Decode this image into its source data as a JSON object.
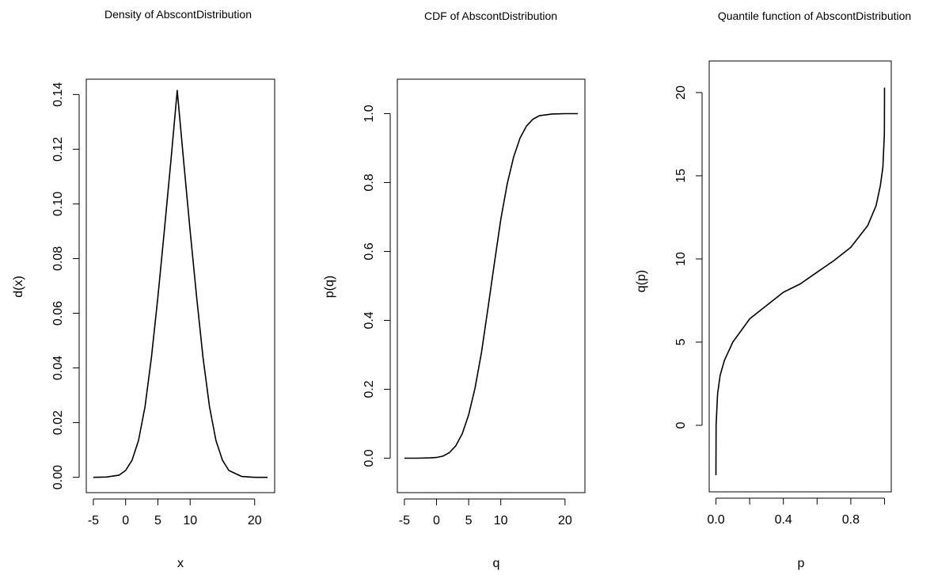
{
  "chart_data": [
    {
      "type": "line",
      "title": "Density of AbscontDistribution",
      "xlabel": "x",
      "ylabel": "d(x)",
      "xlim": [
        -5,
        22
      ],
      "ylim": [
        0,
        0.14
      ],
      "x_ticks": [
        "-5",
        "0",
        "5",
        "10",
        "20"
      ],
      "y_ticks": [
        "0.00",
        "0.02",
        "0.04",
        "0.06",
        "0.08",
        "0.10",
        "0.12",
        "0.14"
      ],
      "series": [
        {
          "x": [
            -5,
            -3,
            -1,
            0,
            1,
            2,
            3,
            4,
            5,
            6,
            7,
            8,
            9,
            10,
            11,
            12,
            13,
            14,
            15,
            16,
            18,
            20,
            22
          ],
          "y": [
            0.0,
            0.0001,
            0.0008,
            0.0025,
            0.0063,
            0.0135,
            0.0258,
            0.0438,
            0.066,
            0.0902,
            0.1154,
            0.1415,
            0.1154,
            0.0902,
            0.066,
            0.0438,
            0.0258,
            0.0135,
            0.0063,
            0.0025,
            0.0003,
            0.0,
            0.0
          ]
        }
      ]
    },
    {
      "type": "line",
      "title": "CDF of AbscontDistribution",
      "xlabel": "q",
      "ylabel": "p(q)",
      "xlim": [
        -5,
        22
      ],
      "ylim": [
        0,
        1
      ],
      "x_ticks": [
        "-5",
        "0",
        "5",
        "10",
        "20"
      ],
      "y_ticks": [
        "0.0",
        "0.2",
        "0.4",
        "0.6",
        "0.8",
        "1.0"
      ],
      "series": [
        {
          "x": [
            -5,
            -3,
            -1,
            0,
            1,
            2,
            3,
            4,
            5,
            6,
            7,
            8,
            9,
            10,
            11,
            12,
            13,
            14,
            15,
            16,
            18,
            20,
            22
          ],
          "y": [
            0.0,
            0.0,
            0.001,
            0.002,
            0.006,
            0.016,
            0.036,
            0.071,
            0.126,
            0.204,
            0.307,
            0.434,
            0.566,
            0.693,
            0.796,
            0.874,
            0.929,
            0.964,
            0.984,
            0.994,
            0.999,
            1.0,
            1.0
          ]
        }
      ]
    },
    {
      "type": "line",
      "title": "Quantile function of AbscontDistribution",
      "xlabel": "p",
      "ylabel": "q(p)",
      "xlim": [
        0,
        1
      ],
      "ylim": [
        -3,
        20.3
      ],
      "x_ticks": [
        "0.0",
        "0.4",
        "0.8"
      ],
      "y_ticks": [
        "0",
        "5",
        "10",
        "15",
        "20"
      ],
      "series": [
        {
          "x": [
            0.0,
            0.001,
            0.01,
            0.025,
            0.05,
            0.1,
            0.2,
            0.3,
            0.4,
            0.5,
            0.6,
            0.7,
            0.8,
            0.9,
            0.95,
            0.975,
            0.99,
            0.999,
            1.0
          ],
          "y": [
            -3.0,
            0.0,
            1.9,
            3.0,
            3.9,
            5.0,
            6.4,
            7.2,
            8.0,
            8.5,
            9.2,
            9.9,
            10.7,
            12.0,
            13.2,
            14.4,
            15.5,
            17.5,
            20.3
          ]
        }
      ]
    }
  ]
}
